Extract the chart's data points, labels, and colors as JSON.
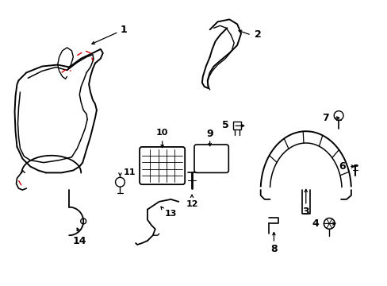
{
  "background_color": "#ffffff",
  "line_color": "#000000",
  "red_color": "#cc0000",
  "figsize": [
    4.89,
    3.6
  ],
  "dpi": 100
}
